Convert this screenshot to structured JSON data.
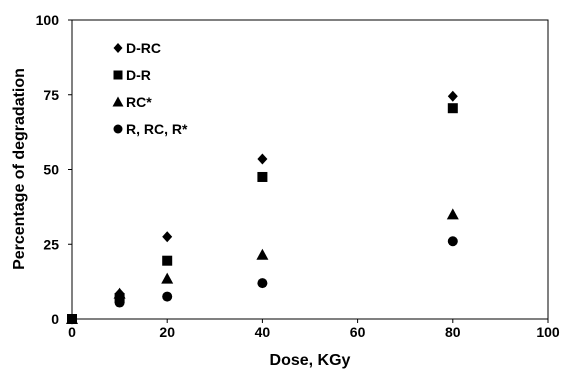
{
  "chart_data": {
    "type": "scatter",
    "title": "",
    "xlabel": "Dose, KGy",
    "ylabel": "Percentage of degradation",
    "xlim": [
      0,
      100
    ],
    "ylim": [
      0,
      100
    ],
    "x_ticks": [
      "0",
      "20",
      "40",
      "60",
      "80",
      "100"
    ],
    "y_ticks": [
      "0",
      "25",
      "50",
      "75",
      "100"
    ],
    "grid": false,
    "legend_position": "top-left",
    "series": [
      {
        "name": "D-RC",
        "marker": "diamond",
        "color": "#000000",
        "points": [
          {
            "x": 0,
            "y": 0
          },
          {
            "x": 10,
            "y": 8.5
          },
          {
            "x": 20,
            "y": 27.5
          },
          {
            "x": 40,
            "y": 53.5
          },
          {
            "x": 80,
            "y": 74.5
          }
        ]
      },
      {
        "name": "D-R",
        "marker": "square",
        "color": "#000000",
        "points": [
          {
            "x": 0,
            "y": 0
          },
          {
            "x": 10,
            "y": 7
          },
          {
            "x": 20,
            "y": 19.5
          },
          {
            "x": 40,
            "y": 47.5
          },
          {
            "x": 80,
            "y": 70.5
          }
        ]
      },
      {
        "name": "RC*",
        "marker": "triangle",
        "color": "#000000",
        "points": [
          {
            "x": 0,
            "y": 0
          },
          {
            "x": 10,
            "y": 8.5
          },
          {
            "x": 20,
            "y": 13.5
          },
          {
            "x": 40,
            "y": 21.5
          },
          {
            "x": 80,
            "y": 35
          }
        ]
      },
      {
        "name": "R, RC, R*",
        "marker": "circle",
        "color": "#000000",
        "points": [
          {
            "x": 0,
            "y": 0
          },
          {
            "x": 10,
            "y": 5.5
          },
          {
            "x": 20,
            "y": 7.5
          },
          {
            "x": 40,
            "y": 12
          },
          {
            "x": 80,
            "y": 26
          }
        ]
      }
    ]
  }
}
